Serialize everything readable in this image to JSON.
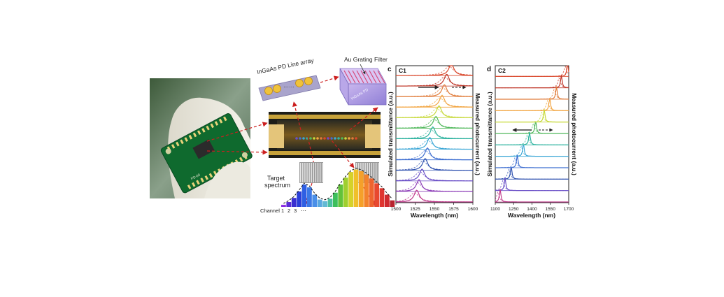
{
  "left": {
    "line_array_label": "InGaAs PD Line array",
    "filter_label": "Au Grating Filter",
    "pd_label": "InGaAs PD",
    "target_label_1": "Target",
    "target_label_2": "spectrum",
    "channel_label": "Channel",
    "channel_numbers": [
      "1",
      "2",
      "3"
    ],
    "ellipsis": "⋯",
    "chip_text": "PD-00",
    "array_dots": "······"
  },
  "spectrum_bars": [
    {
      "value": 0.05,
      "color": "#8a2be2"
    },
    {
      "value": 0.12,
      "color": "#5b2cd6"
    },
    {
      "value": 0.22,
      "color": "#3a2fd0"
    },
    {
      "value": 0.38,
      "color": "#2a3fd8"
    },
    {
      "value": 0.55,
      "color": "#2f5fe3"
    },
    {
      "value": 0.48,
      "color": "#3b78e6"
    },
    {
      "value": 0.3,
      "color": "#4a8fe8"
    },
    {
      "value": 0.18,
      "color": "#5aa8e0"
    },
    {
      "value": 0.14,
      "color": "#63b9d4"
    },
    {
      "value": 0.2,
      "color": "#4cc0a0"
    },
    {
      "value": 0.35,
      "color": "#3dbf5c"
    },
    {
      "value": 0.55,
      "color": "#62c23a"
    },
    {
      "value": 0.72,
      "color": "#9fcf2e"
    },
    {
      "value": 0.86,
      "color": "#d6d22a"
    },
    {
      "value": 0.92,
      "color": "#f0c02a"
    },
    {
      "value": 0.88,
      "color": "#f5a02a"
    },
    {
      "value": 0.8,
      "color": "#f3822c"
    },
    {
      "value": 0.7,
      "color": "#ee642e"
    },
    {
      "value": 0.58,
      "color": "#e8482f"
    },
    {
      "value": 0.46,
      "color": "#df3530"
    },
    {
      "value": 0.3,
      "color": "#cf2a30"
    },
    {
      "value": 0.16,
      "color": "#b8232e"
    }
  ],
  "chart_data": [
    {
      "type": "line",
      "panel_letter": "c",
      "panel_name": "C1",
      "xlabel": "Wavelength (nm)",
      "ylabel_left": "Simulated transmittance (a.u.)",
      "ylabel_right": "Measured photocurrent (a.u.)",
      "xlim": [
        1500,
        1600
      ],
      "xticks": [
        1500,
        1525,
        1550,
        1575,
        1600
      ],
      "series": [
        {
          "peak": 1572,
          "color": "#d9472b"
        },
        {
          "peak": 1566,
          "color": "#c0392b"
        },
        {
          "peak": 1563,
          "color": "#e07b39"
        },
        {
          "peak": 1560,
          "color": "#f2a541"
        },
        {
          "peak": 1556,
          "color": "#c7d93a"
        },
        {
          "peak": 1552,
          "color": "#4fb85a"
        },
        {
          "peak": 1548,
          "color": "#2fb3a0"
        },
        {
          "peak": 1544,
          "color": "#3aa6d6"
        },
        {
          "peak": 1541,
          "color": "#3f6fd1"
        },
        {
          "peak": 1538,
          "color": "#2c4fae"
        },
        {
          "peak": 1534,
          "color": "#6a4fc7"
        },
        {
          "peak": 1530,
          "color": "#8e3fb8"
        },
        {
          "peak": 1527,
          "color": "#c03c8c"
        }
      ]
    },
    {
      "type": "line",
      "panel_letter": "d",
      "panel_name": "C2",
      "xlabel": "Wavelength (nm)",
      "ylabel_left": "Simulated transmittance (a.u.)",
      "ylabel_right": "Measured photocurrent (a.u.)",
      "xlim": [
        1100,
        1700
      ],
      "xticks": [
        1100,
        1250,
        1400,
        1550,
        1700
      ],
      "series": [
        {
          "peak": 1690,
          "color": "#d9472b"
        },
        {
          "peak": 1640,
          "color": "#c0392b"
        },
        {
          "peak": 1600,
          "color": "#e07b39"
        },
        {
          "peak": 1545,
          "color": "#f2a541"
        },
        {
          "peak": 1500,
          "color": "#c7d93a"
        },
        {
          "peak": 1430,
          "color": "#4fb85a"
        },
        {
          "peak": 1380,
          "color": "#2fb3a0"
        },
        {
          "peak": 1330,
          "color": "#3aa6d6"
        },
        {
          "peak": 1280,
          "color": "#3f6fd1"
        },
        {
          "peak": 1230,
          "color": "#2c4fae"
        },
        {
          "peak": 1180,
          "color": "#6a4fc7"
        },
        {
          "peak": 1140,
          "color": "#c03c8c"
        }
      ]
    }
  ]
}
